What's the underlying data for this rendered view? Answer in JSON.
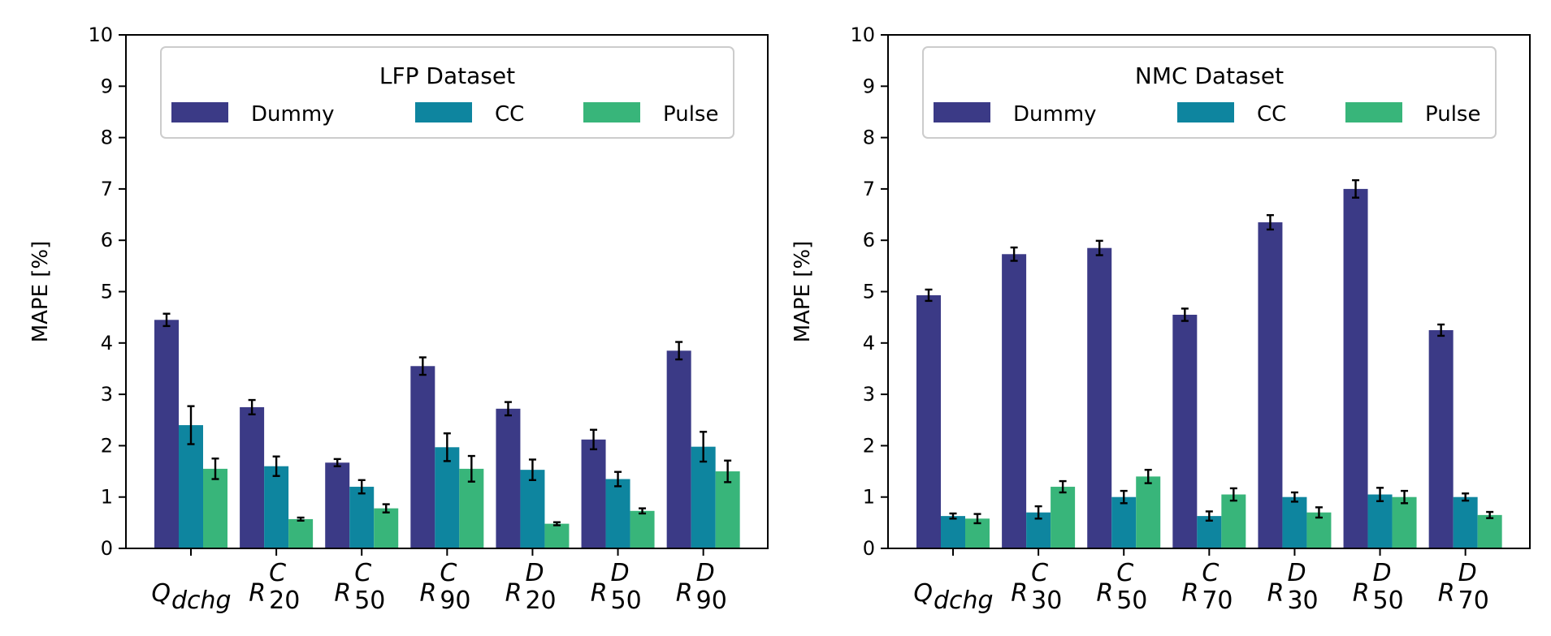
{
  "chart_data": [
    {
      "type": "bar",
      "legend_title": "LFP Dataset",
      "ylabel": "MAPE [%]",
      "ylim": [
        0,
        10
      ],
      "yticks": [
        "0",
        "1",
        "2",
        "3",
        "4",
        "5",
        "6",
        "7",
        "8",
        "9",
        "10"
      ],
      "legend_position": "top",
      "categories": [
        {
          "sym": "Q",
          "sub": "dchg",
          "sup": ""
        },
        {
          "sym": "R",
          "sub": "20",
          "sup": "C"
        },
        {
          "sym": "R",
          "sub": "50",
          "sup": "C"
        },
        {
          "sym": "R",
          "sub": "90",
          "sup": "C"
        },
        {
          "sym": "R",
          "sub": "20",
          "sup": "D"
        },
        {
          "sym": "R",
          "sub": "50",
          "sup": "D"
        },
        {
          "sym": "R",
          "sub": "90",
          "sup": "D"
        }
      ],
      "series": [
        {
          "name": "Dummy",
          "color": "#3b3a86",
          "values": [
            4.45,
            2.75,
            1.67,
            3.55,
            2.72,
            2.12,
            3.85
          ],
          "errors": [
            0.12,
            0.14,
            0.07,
            0.17,
            0.13,
            0.19,
            0.17
          ]
        },
        {
          "name": "CC",
          "color": "#0e859f",
          "values": [
            2.4,
            1.6,
            1.2,
            1.97,
            1.53,
            1.35,
            1.98
          ],
          "errors": [
            0.37,
            0.19,
            0.13,
            0.27,
            0.2,
            0.14,
            0.29
          ]
        },
        {
          "name": "Pulse",
          "color": "#38b57a",
          "values": [
            1.55,
            0.57,
            0.78,
            1.55,
            0.48,
            0.73,
            1.5
          ],
          "errors": [
            0.2,
            0.03,
            0.08,
            0.25,
            0.03,
            0.05,
            0.21
          ]
        }
      ]
    },
    {
      "type": "bar",
      "legend_title": "NMC Dataset",
      "ylabel": "MAPE [%]",
      "ylim": [
        0,
        10
      ],
      "yticks": [
        "0",
        "1",
        "2",
        "3",
        "4",
        "5",
        "6",
        "7",
        "8",
        "9",
        "10"
      ],
      "legend_position": "top",
      "categories": [
        {
          "sym": "Q",
          "sub": "dchg",
          "sup": ""
        },
        {
          "sym": "R",
          "sub": "30",
          "sup": "C"
        },
        {
          "sym": "R",
          "sub": "50",
          "sup": "C"
        },
        {
          "sym": "R",
          "sub": "70",
          "sup": "C"
        },
        {
          "sym": "R",
          "sub": "30",
          "sup": "D"
        },
        {
          "sym": "R",
          "sub": "50",
          "sup": "D"
        },
        {
          "sym": "R",
          "sub": "70",
          "sup": "D"
        }
      ],
      "series": [
        {
          "name": "Dummy",
          "color": "#3b3a86",
          "values": [
            4.93,
            5.73,
            5.85,
            4.55,
            6.35,
            7.0,
            4.25
          ],
          "errors": [
            0.11,
            0.13,
            0.14,
            0.12,
            0.14,
            0.17,
            0.11
          ]
        },
        {
          "name": "CC",
          "color": "#0e859f",
          "values": [
            0.63,
            0.7,
            1.0,
            0.63,
            1.0,
            1.05,
            1.0
          ],
          "errors": [
            0.05,
            0.12,
            0.12,
            0.09,
            0.09,
            0.13,
            0.07
          ]
        },
        {
          "name": "Pulse",
          "color": "#38b57a",
          "values": [
            0.58,
            1.2,
            1.4,
            1.05,
            0.7,
            1.0,
            0.65
          ],
          "errors": [
            0.09,
            0.11,
            0.13,
            0.12,
            0.1,
            0.12,
            0.06
          ]
        }
      ]
    }
  ]
}
